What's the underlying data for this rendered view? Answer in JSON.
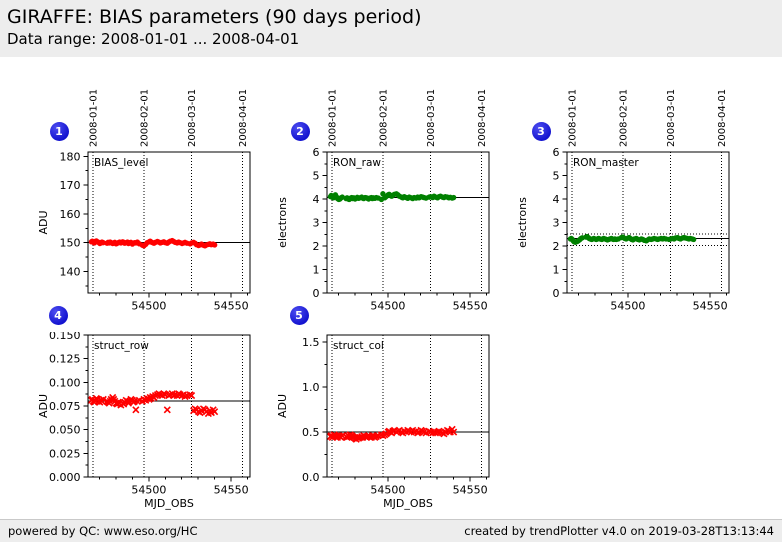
{
  "header": {
    "title": "GIRAFFE: BIAS parameters (90 days period)",
    "subtitle": "Data range: 2008-01-01 ... 2008-04-01"
  },
  "footer": {
    "left": "powered by QC: www.eso.org/HC",
    "right": "created by trendPlotter v4.0 on 2019-03-28T13:13:44"
  },
  "colors": {
    "badge_blue": "#1212cf",
    "marker_red": "#ff0000",
    "marker_green": "#008000",
    "axis_black": "#000000",
    "header_bg": "#ededed",
    "footer_bg": "#ededed"
  },
  "chart_data": {
    "type": "scatter",
    "x_axis_label": "MJD_OBS",
    "xlim": [
      54463,
      54561.5
    ],
    "x_ticks": [
      54500,
      54550
    ],
    "x_minor_step": 10,
    "grid": "vertical dotted lines at month boundaries",
    "month_gridlines": [
      {
        "mjd": 54466,
        "label": "2008-01-01"
      },
      {
        "mjd": 54497,
        "label": "2008-02-01"
      },
      {
        "mjd": 54526,
        "label": "2008-03-01"
      },
      {
        "mjd": 54557,
        "label": "2008-04-01"
      }
    ],
    "mjd": [
      54465.1,
      54465.6,
      54466.2,
      54466.8,
      54467.3,
      54468.1,
      54468.7,
      54469.4,
      54470.2,
      54470.9,
      54471.5,
      54472.3,
      54474.6,
      54475.2,
      54475.9,
      54476.5,
      54477.1,
      54478.0,
      54478.6,
      54479.3,
      54480.1,
      54480.8,
      54481.4,
      54482.2,
      54483.0,
      54484.1,
      54484.7,
      54485.3,
      54486.2,
      54487.0,
      54487.6,
      54488.3,
      54489.1,
      54490.0,
      54490.6,
      54491.3,
      54492.1,
      54493.0,
      54494.2,
      54496.1,
      54497.0,
      54498.1,
      54499.0,
      54500.2,
      54500.8,
      54501.5,
      54502.3,
      54503.1,
      54504.0,
      54505.2,
      54506.1,
      54507.0,
      54508.2,
      54509.1,
      54510.0,
      54511.2,
      54512.1,
      54513.0,
      54514.2,
      54515.1,
      54516.0,
      54517.2,
      54518.1,
      54519.0,
      54520.2,
      54521.1,
      54522.0,
      54523.2,
      54525.1,
      54526.0,
      54527.2,
      54528.1,
      54529.0,
      54530.2,
      54531.1,
      54532.0,
      54533.2,
      54534.1,
      54535.0,
      54536.2,
      54537.1,
      54538.0,
      54539.1,
      54540.0
    ],
    "plots": [
      {
        "badge": "1",
        "name": "BIAS_level",
        "ylabel": "ADU",
        "row": 1,
        "col": 1,
        "ylim": [
          132.5,
          181.5
        ],
        "yticks": [
          140,
          150,
          160,
          170,
          180
        ],
        "ydecimals": 0,
        "yminor": 5,
        "marker": "circle",
        "color": "#ff0000",
        "center_line": 150.0,
        "values": [
          150.3,
          150.5,
          150.2,
          149.9,
          150.4,
          150.6,
          150.3,
          150.1,
          149.7,
          149.9,
          150.2,
          150.0,
          149.8,
          150.1,
          149.9,
          150.2,
          150.0,
          149.7,
          149.9,
          150.1,
          149.6,
          149.8,
          150.0,
          150.2,
          149.9,
          150.3,
          150.1,
          149.8,
          150.0,
          150.2,
          149.7,
          149.9,
          150.1,
          149.5,
          149.8,
          150.0,
          149.9,
          150.2,
          149.6,
          149.1,
          148.9,
          149.4,
          150.0,
          150.3,
          150.5,
          150.2,
          150.0,
          149.8,
          150.1,
          150.4,
          150.2,
          149.9,
          150.1,
          150.3,
          150.0,
          149.8,
          150.2,
          150.5,
          150.7,
          150.4,
          150.1,
          149.9,
          150.2,
          150.0,
          149.7,
          149.9,
          150.1,
          149.8,
          149.6,
          149.9,
          150.1,
          149.8,
          149.3,
          149.0,
          149.2,
          149.5,
          149.1,
          148.9,
          149.2,
          149.4,
          149.6,
          149.3,
          149.5,
          149.2
        ]
      },
      {
        "badge": "2",
        "name": "RON_raw",
        "ylabel": "electrons",
        "row": 1,
        "col": 2,
        "ylim": [
          0,
          6
        ],
        "yticks": [
          0,
          1,
          2,
          3,
          4,
          5,
          6
        ],
        "ydecimals": 0,
        "yminor": 0.5,
        "marker": "circle",
        "color": "#008000",
        "center_line": 4.07,
        "values": [
          4.1,
          4.15,
          4.08,
          4.05,
          4.12,
          4.18,
          4.1,
          4.02,
          3.98,
          4.0,
          4.05,
          4.08,
          4.02,
          4.05,
          4.0,
          3.98,
          4.03,
          4.06,
          4.02,
          4.05,
          4.0,
          4.04,
          4.07,
          4.03,
          4.05,
          4.08,
          4.04,
          4.02,
          4.06,
          4.05,
          4.03,
          4.0,
          4.04,
          4.06,
          4.02,
          4.05,
          4.03,
          4.06,
          4.04,
          3.98,
          4.22,
          4.05,
          4.1,
          4.18,
          4.2,
          4.15,
          4.12,
          4.16,
          4.2,
          4.22,
          4.18,
          4.12,
          4.08,
          4.05,
          4.1,
          4.06,
          4.03,
          4.08,
          4.05,
          4.02,
          4.06,
          4.04,
          4.08,
          4.05,
          4.1,
          4.08,
          4.06,
          4.04,
          4.08,
          4.1,
          4.06,
          4.12,
          4.08,
          4.05,
          4.1,
          4.12,
          4.08,
          4.06,
          4.1,
          4.08,
          4.05,
          4.07,
          4.04,
          4.06
        ]
      },
      {
        "badge": "3",
        "name": "RON_master",
        "ylabel": "electrons",
        "row": 1,
        "col": 3,
        "ylim": [
          0,
          6
        ],
        "yticks": [
          0,
          1,
          2,
          3,
          4,
          5,
          6
        ],
        "ydecimals": 0,
        "yminor": 0.5,
        "marker": "circle",
        "color": "#008000",
        "center_line": 2.31,
        "dotted_lines": [
          2.51,
          2.02
        ],
        "values": [
          2.3,
          2.32,
          2.28,
          2.22,
          2.18,
          2.16,
          2.18,
          2.2,
          2.24,
          2.28,
          2.32,
          2.35,
          2.38,
          2.4,
          2.36,
          2.32,
          2.3,
          2.28,
          2.3,
          2.32,
          2.3,
          2.28,
          2.3,
          2.32,
          2.3,
          2.28,
          2.3,
          2.32,
          2.3,
          2.28,
          2.26,
          2.28,
          2.3,
          2.32,
          2.3,
          2.28,
          2.3,
          2.28,
          2.3,
          2.36,
          2.38,
          2.32,
          2.3,
          2.34,
          2.36,
          2.32,
          2.28,
          2.26,
          2.3,
          2.32,
          2.28,
          2.26,
          2.3,
          2.28,
          2.24,
          2.22,
          2.26,
          2.3,
          2.28,
          2.3,
          2.32,
          2.3,
          2.28,
          2.3,
          2.32,
          2.3,
          2.32,
          2.3,
          2.28,
          2.3,
          2.32,
          2.3,
          2.34,
          2.36,
          2.32,
          2.3,
          2.34,
          2.36,
          2.34,
          2.32,
          2.3,
          2.32,
          2.3,
          2.28
        ]
      },
      {
        "badge": "4",
        "name": "struct_row",
        "ylabel": "ADU",
        "xlabel": "MJD_OBS",
        "row": 2,
        "col": 1,
        "ylim": [
          0,
          0.15
        ],
        "yticks": [
          0,
          0.025,
          0.05,
          0.075,
          0.1,
          0.125,
          0.15
        ],
        "ydecimals": 3,
        "yminor": 0.0125,
        "marker": "x",
        "color": "#ff0000",
        "center_line": 0.0805,
        "values": [
          0.081,
          0.082,
          0.08,
          0.079,
          0.081,
          0.083,
          0.082,
          0.08,
          0.079,
          0.081,
          0.08,
          0.082,
          0.08,
          0.079,
          0.078,
          0.08,
          0.082,
          0.084,
          0.082,
          0.08,
          0.078,
          0.077,
          0.079,
          0.078,
          0.076,
          0.078,
          0.077,
          0.079,
          0.081,
          0.08,
          0.078,
          0.08,
          0.082,
          0.081,
          0.079,
          0.08,
          0.071,
          0.08,
          0.081,
          0.08,
          0.082,
          0.081,
          0.083,
          0.082,
          0.084,
          0.083,
          0.085,
          0.084,
          0.086,
          0.087,
          0.088,
          0.087,
          0.086,
          0.088,
          0.087,
          0.071,
          0.086,
          0.087,
          0.088,
          0.086,
          0.087,
          0.086,
          0.088,
          0.087,
          0.086,
          0.087,
          0.085,
          0.086,
          0.087,
          0.086,
          0.07,
          0.072,
          0.071,
          0.069,
          0.068,
          0.07,
          0.072,
          0.071,
          0.069,
          0.067,
          0.07,
          0.068,
          0.071,
          0.069
        ]
      },
      {
        "badge": "5",
        "name": "struct_col",
        "ylabel": "ADU",
        "xlabel": "MJD_OBS",
        "row": 2,
        "col": 2,
        "ylim": [
          0,
          1.58
        ],
        "yticks": [
          0,
          0.5,
          1,
          1.5
        ],
        "ydecimals": 1,
        "yminor": 0.25,
        "marker": "x",
        "color": "#ff0000",
        "center_line": 0.5,
        "values": [
          0.45,
          0.46,
          0.44,
          0.45,
          0.47,
          0.46,
          0.45,
          0.44,
          0.46,
          0.45,
          0.44,
          0.46,
          0.45,
          0.44,
          0.46,
          0.45,
          0.47,
          0.46,
          0.45,
          0.44,
          0.43,
          0.42,
          0.44,
          0.43,
          0.44,
          0.45,
          0.44,
          0.46,
          0.45,
          0.44,
          0.45,
          0.46,
          0.45,
          0.44,
          0.46,
          0.45,
          0.44,
          0.45,
          0.46,
          0.47,
          0.46,
          0.47,
          0.48,
          0.5,
          0.51,
          0.5,
          0.49,
          0.51,
          0.52,
          0.5,
          0.51,
          0.52,
          0.5,
          0.49,
          0.51,
          0.5,
          0.52,
          0.51,
          0.5,
          0.52,
          0.5,
          0.51,
          0.49,
          0.5,
          0.52,
          0.51,
          0.5,
          0.49,
          0.51,
          0.5,
          0.49,
          0.5,
          0.49,
          0.5,
          0.51,
          0.5,
          0.49,
          0.48,
          0.5,
          0.52,
          0.51,
          0.5,
          0.53,
          0.5
        ]
      }
    ]
  }
}
